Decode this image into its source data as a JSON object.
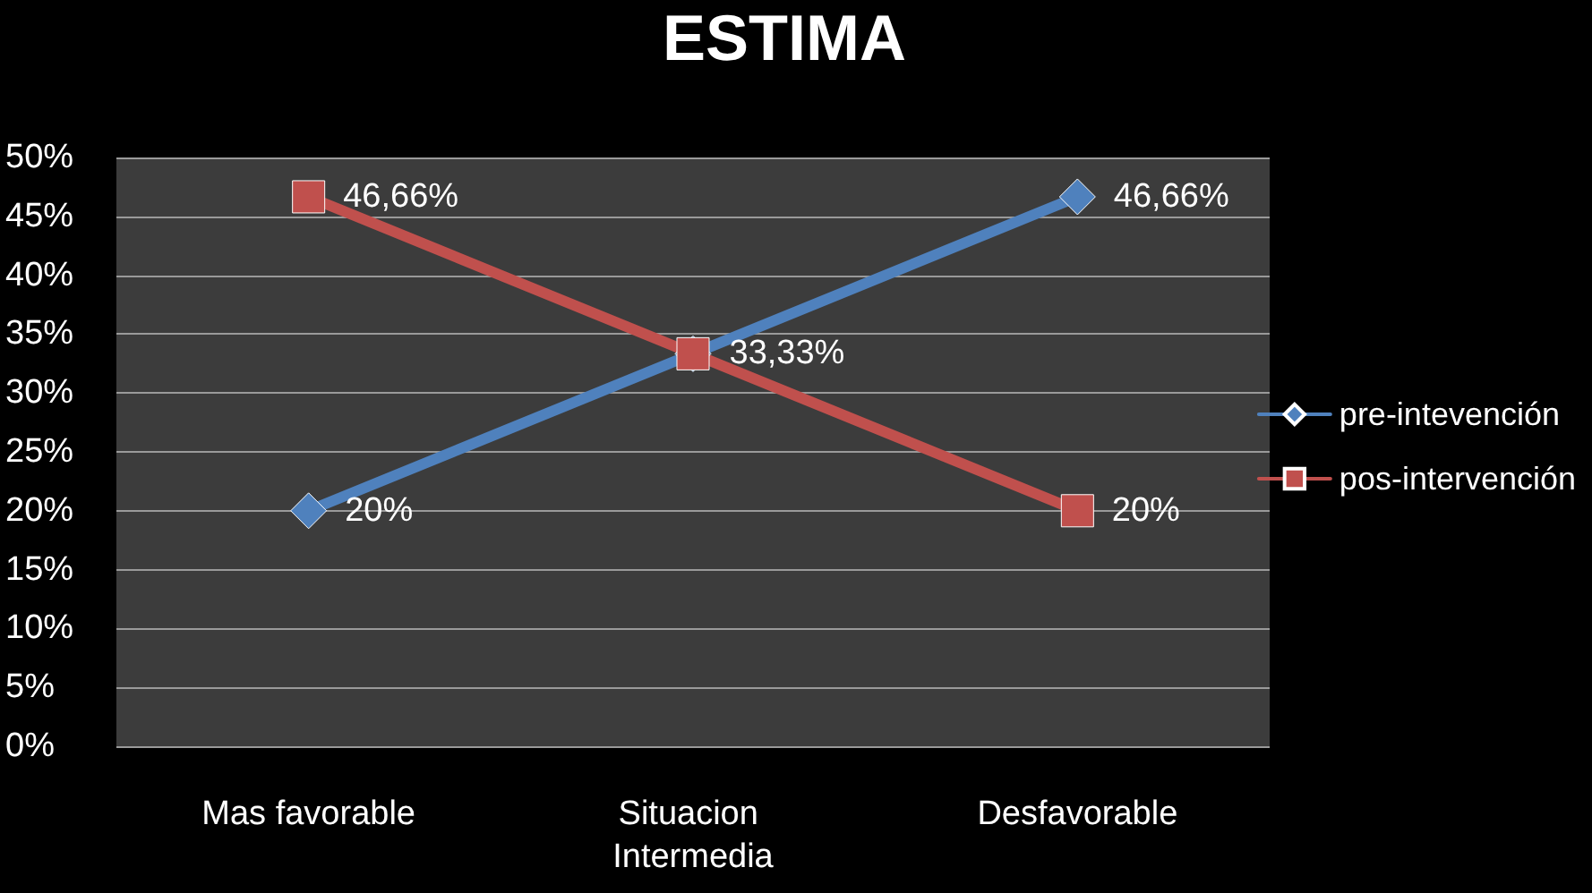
{
  "chart_data": {
    "type": "line",
    "title": "ESTIMA",
    "categories": [
      "Mas favorable",
      "Situacion Intermedia",
      "Desfavorable"
    ],
    "series": [
      {
        "name": "pre-intevención",
        "color": "#4f81bd",
        "marker": "diamond",
        "values": [
          20,
          33.33,
          46.66
        ],
        "value_labels": [
          "20%",
          "33,33%",
          "46,66%"
        ]
      },
      {
        "name": "pos-intervención",
        "color": "#c0504d",
        "marker": "square",
        "values": [
          46.66,
          33.33,
          20
        ],
        "value_labels": [
          "46,66%",
          null,
          "20%"
        ]
      }
    ],
    "ylim": [
      0,
      50
    ],
    "yticks": [
      {
        "value": 0,
        "label": "0%"
      },
      {
        "value": 5,
        "label": "5%"
      },
      {
        "value": 10,
        "label": "10%"
      },
      {
        "value": 15,
        "label": "15%"
      },
      {
        "value": 20,
        "label": "20%"
      },
      {
        "value": 25,
        "label": "25%"
      },
      {
        "value": 30,
        "label": "30%"
      },
      {
        "value": 35,
        "label": "35%"
      },
      {
        "value": 40,
        "label": "40%"
      },
      {
        "value": 45,
        "label": "45%"
      },
      {
        "value": 50,
        "label": "50%"
      }
    ],
    "grid": "y",
    "legend": "right"
  }
}
